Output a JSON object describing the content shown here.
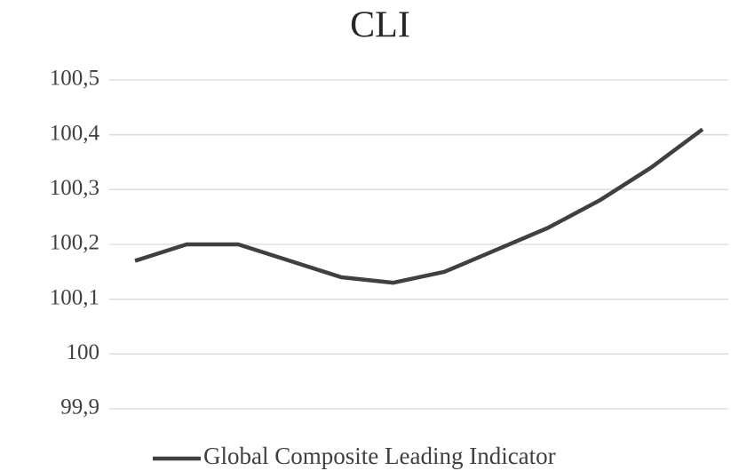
{
  "chart_data": {
    "type": "line",
    "title": "CLI",
    "categories": [
      null,
      null,
      null,
      null,
      null,
      null,
      null,
      null,
      null,
      null,
      null,
      null
    ],
    "series": [
      {
        "name": "Global Composite Leading Indicator",
        "color": "#404040",
        "values": [
          100.17,
          100.2,
          100.2,
          100.17,
          100.14,
          100.13,
          100.15,
          100.19,
          100.23,
          100.28,
          100.34,
          100.41
        ]
      }
    ],
    "ylim": [
      99.9,
      100.5
    ],
    "yticks": [
      {
        "value": 99.9,
        "label": "99,9"
      },
      100,
      {
        "value": 100.1,
        "label": "100,1"
      },
      {
        "value": 100.2,
        "label": "100,2"
      },
      {
        "value": 100.3,
        "label": "100,3"
      },
      {
        "value": 100.4,
        "label": "100,4"
      },
      {
        "value": 100.5,
        "label": "100,5"
      }
    ],
    "grid": true,
    "legend": "bottom"
  }
}
